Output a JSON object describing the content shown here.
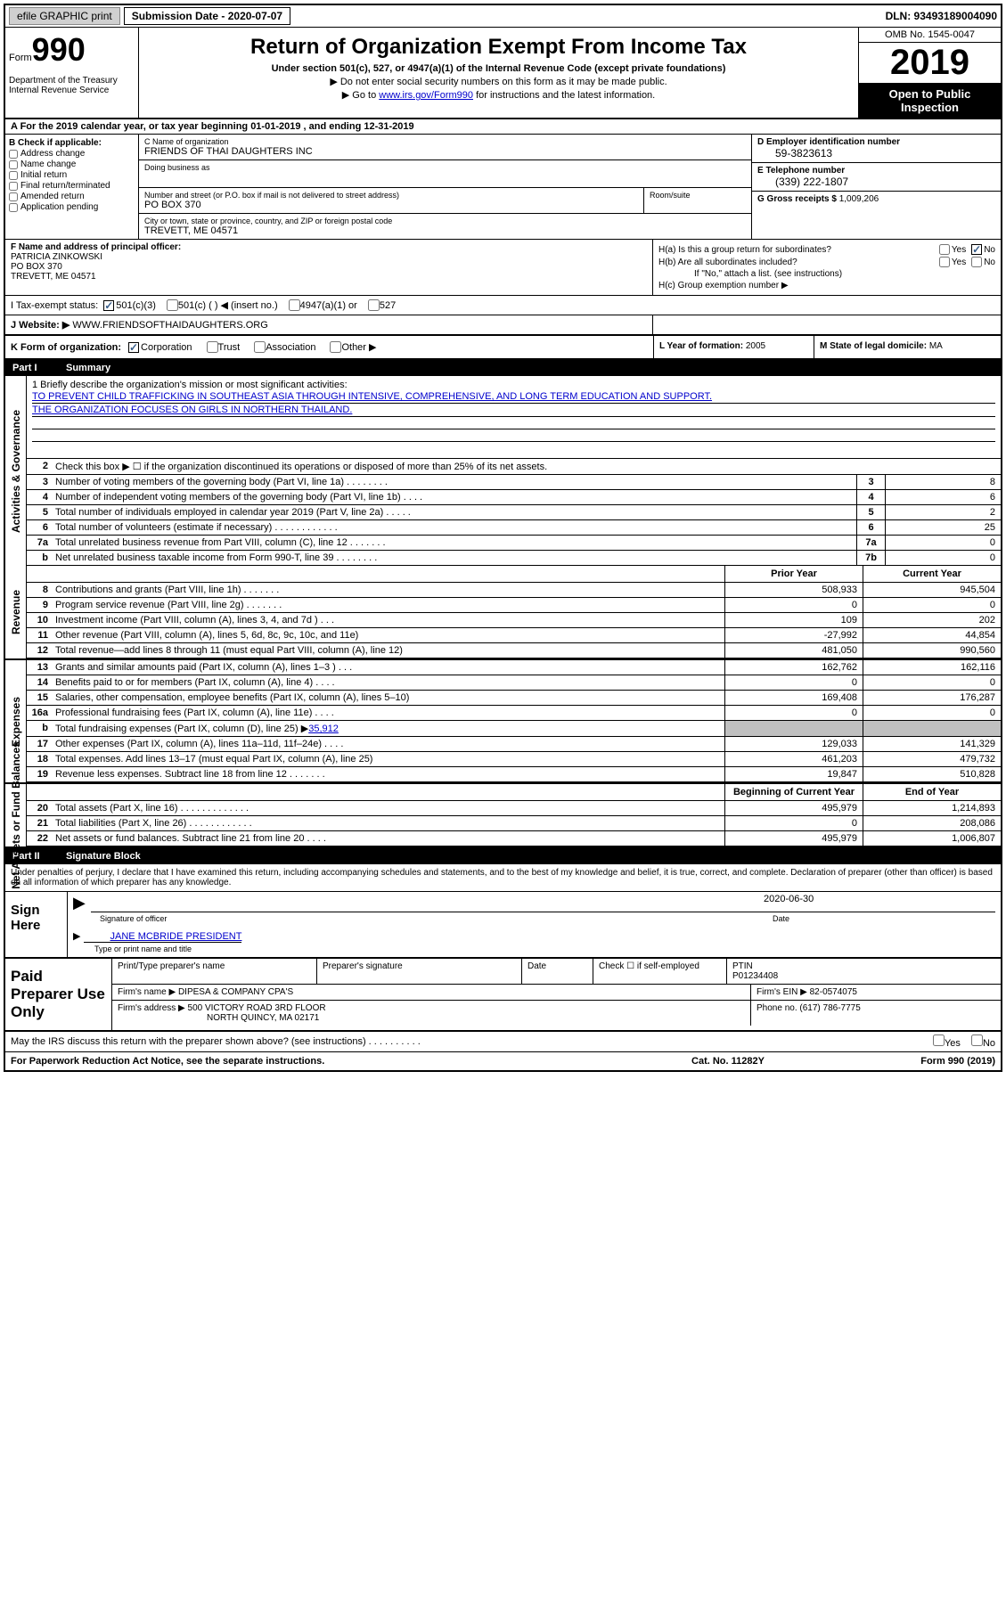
{
  "topbar": {
    "efile": "efile GRAPHIC print",
    "sub_label": "Submission Date - 2020-07-07",
    "dln": "DLN: 93493189004090"
  },
  "header": {
    "form_label": "Form",
    "form_num": "990",
    "dept": "Department of the Treasury\nInternal Revenue Service",
    "title": "Return of Organization Exempt From Income Tax",
    "subtitle": "Under section 501(c), 527, or 4947(a)(1) of the Internal Revenue Code (except private foundations)",
    "line1": "▶ Do not enter social security numbers on this form as it may be made public.",
    "line2_pre": "▶ Go to ",
    "line2_link": "www.irs.gov/Form990",
    "line2_post": " for instructions and the latest information.",
    "omb": "OMB No. 1545-0047",
    "year": "2019",
    "open": "Open to Public Inspection"
  },
  "row_a": "A For the 2019 calendar year, or tax year beginning 01-01-2019    , and ending 12-31-2019",
  "col_b": {
    "label": "B Check if applicable:",
    "items": [
      "Address change",
      "Name change",
      "Initial return",
      "Final return/terminated",
      "Amended return",
      "Application pending"
    ]
  },
  "col_c": {
    "name_label": "C Name of organization",
    "name": "FRIENDS OF THAI DAUGHTERS INC",
    "dba_label": "Doing business as",
    "dba": "",
    "addr_label": "Number and street (or P.O. box if mail is not delivered to street address)",
    "addr": "PO BOX 370",
    "room_label": "Room/suite",
    "city_label": "City or town, state or province, country, and ZIP or foreign postal code",
    "city": "TREVETT, ME  04571"
  },
  "col_d": {
    "ein_label": "D Employer identification number",
    "ein": "59-3823613",
    "tel_label": "E Telephone number",
    "tel": "(339) 222-1807",
    "gross_label": "G Gross receipts $",
    "gross": "1,009,206"
  },
  "col_f": {
    "label": "F  Name and address of principal officer:",
    "name": "PATRICIA ZINKOWSKI",
    "addr1": "PO BOX 370",
    "addr2": "TREVETT, ME  04571"
  },
  "col_h": {
    "ha_label": "H(a)  Is this a group return for subordinates?",
    "hb_label": "H(b)  Are all subordinates included?",
    "hb_note": "If \"No,\" attach a list. (see instructions)",
    "hc_label": "H(c)  Group exemption number ▶"
  },
  "row_i": {
    "label": "I    Tax-exempt status:",
    "opt1": "501(c)(3)",
    "opt2": "501(c) (  ) ◀ (insert no.)",
    "opt3": "4947(a)(1) or",
    "opt4": "527"
  },
  "row_j": {
    "label": "J   Website: ▶",
    "val": "WWW.FRIENDSOFTHAIDAUGHTERS.ORG"
  },
  "row_k": {
    "label": "K Form of organization:",
    "opts": [
      "Corporation",
      "Trust",
      "Association",
      "Other ▶"
    ],
    "l_label": "L Year of formation:",
    "l_val": "2005",
    "m_label": "M State of legal domicile:",
    "m_val": "MA"
  },
  "part1": {
    "label": "Part I",
    "title": "Summary"
  },
  "mission": {
    "label": "1  Briefly describe the organization's mission or most significant activities:",
    "line1": "TO PREVENT CHILD TRAFFICKING IN SOUTHEAST ASIA THROUGH INTENSIVE, COMPREHENSIVE, AND LONG TERM EDUCATION AND SUPPORT.",
    "line2": "THE ORGANIZATION FOCUSES ON GIRLS IN NORTHERN THAILAND."
  },
  "gov_rows": [
    {
      "n": "2",
      "desc": "Check this box ▶ ☐  if the organization discontinued its operations or disposed of more than 25% of its net assets."
    },
    {
      "n": "3",
      "desc": "Number of voting members of the governing body (Part VI, line 1a)  .   .   .   .   .   .   .   .",
      "box": "3",
      "val": "8"
    },
    {
      "n": "4",
      "desc": "Number of independent voting members of the governing body (Part VI, line 1b)  .   .   .   .",
      "box": "4",
      "val": "6"
    },
    {
      "n": "5",
      "desc": "Total number of individuals employed in calendar year 2019 (Part V, line 2a)  .   .   .   .   .",
      "box": "5",
      "val": "2"
    },
    {
      "n": "6",
      "desc": "Total number of volunteers (estimate if necessary)   .   .   .   .   .   .   .   .   .   .   .   .",
      "box": "6",
      "val": "25"
    },
    {
      "n": "7a",
      "desc": "Total unrelated business revenue from Part VIII, column (C), line 12  .   .   .   .   .   .   .",
      "box": "7a",
      "val": "0"
    },
    {
      "n": "b",
      "desc": "Net unrelated business taxable income from Form 990-T, line 39   .   .   .   .   .   .   .   .",
      "box": "7b",
      "val": "0"
    }
  ],
  "fin_hdr": {
    "py": "Prior Year",
    "cy": "Current Year"
  },
  "rev_rows": [
    {
      "n": "8",
      "desc": "Contributions and grants (Part VIII, line 1h)   .   .   .   .   .   .   .",
      "py": "508,933",
      "cy": "945,504"
    },
    {
      "n": "9",
      "desc": "Program service revenue (Part VIII, line 2g)   .   .   .   .   .   .   .",
      "py": "0",
      "cy": "0"
    },
    {
      "n": "10",
      "desc": "Investment income (Part VIII, column (A), lines 3, 4, and 7d )   .   .   .",
      "py": "109",
      "cy": "202"
    },
    {
      "n": "11",
      "desc": "Other revenue (Part VIII, column (A), lines 5, 6d, 8c, 9c, 10c, and 11e)",
      "py": "-27,992",
      "cy": "44,854"
    },
    {
      "n": "12",
      "desc": "Total revenue—add lines 8 through 11 (must equal Part VIII, column (A), line 12)",
      "py": "481,050",
      "cy": "990,560"
    }
  ],
  "exp_rows": [
    {
      "n": "13",
      "desc": "Grants and similar amounts paid (Part IX, column (A), lines 1–3 )  .   .   .",
      "py": "162,762",
      "cy": "162,116"
    },
    {
      "n": "14",
      "desc": "Benefits paid to or for members (Part IX, column (A), line 4)  .   .   .   .",
      "py": "0",
      "cy": "0"
    },
    {
      "n": "15",
      "desc": "Salaries, other compensation, employee benefits (Part IX, column (A), lines 5–10)",
      "py": "169,408",
      "cy": "176,287"
    },
    {
      "n": "16a",
      "desc": "Professional fundraising fees (Part IX, column (A), line 11e)  .   .   .   .",
      "py": "0",
      "cy": "0"
    },
    {
      "n": "b",
      "desc": "Total fundraising expenses (Part IX, column (D), line 25) ▶35,912",
      "py": "",
      "cy": "",
      "shaded": true
    },
    {
      "n": "17",
      "desc": "Other expenses (Part IX, column (A), lines 11a–11d, 11f–24e)  .   .   .   .",
      "py": "129,033",
      "cy": "141,329"
    },
    {
      "n": "18",
      "desc": "Total expenses. Add lines 13–17 (must equal Part IX, column (A), line 25)",
      "py": "461,203",
      "cy": "479,732"
    },
    {
      "n": "19",
      "desc": "Revenue less expenses. Subtract line 18 from line 12 .   .   .   .   .   .   .",
      "py": "19,847",
      "cy": "510,828"
    }
  ],
  "na_hdr": {
    "py": "Beginning of Current Year",
    "cy": "End of Year"
  },
  "na_rows": [
    {
      "n": "20",
      "desc": "Total assets (Part X, line 16)  .   .   .   .   .   .   .   .   .   .   .   .   .",
      "py": "495,979",
      "cy": "1,214,893"
    },
    {
      "n": "21",
      "desc": "Total liabilities (Part X, line 26)  .   .   .   .   .   .   .   .   .   .   .   .",
      "py": "0",
      "cy": "208,086"
    },
    {
      "n": "22",
      "desc": "Net assets or fund balances. Subtract line 21 from line 20  .   .   .   .",
      "py": "495,979",
      "cy": "1,006,807"
    }
  ],
  "part2": {
    "label": "Part II",
    "title": "Signature Block"
  },
  "sig_intro": "Under penalties of perjury, I declare that I have examined this return, including accompanying schedules and statements, and to the best of my knowledge and belief, it is true, correct, and complete. Declaration of preparer (other than officer) is based on all information of which preparer has any knowledge.",
  "sign": {
    "left": "Sign Here",
    "sig_label": "Signature of officer",
    "date_val": "2020-06-30",
    "date_label": "Date",
    "name": "JANE MCBRIDE  PRESIDENT",
    "name_label": "Type or print name and title"
  },
  "prep": {
    "left": "Paid Preparer Use Only",
    "r1_c1": "Print/Type preparer's name",
    "r1_c2": "Preparer's signature",
    "r1_c3": "Date",
    "r1_c4_label": "Check ☐ if self-employed",
    "r1_c5_label": "PTIN",
    "r1_c5_val": "P01234408",
    "r2_label": "Firm's name    ▶",
    "r2_val": "DIPESA & COMPANY CPA'S",
    "r2_ein_label": "Firm's EIN ▶",
    "r2_ein_val": "82-0574075",
    "r3_label": "Firm's address ▶",
    "r3_val1": "500 VICTORY ROAD 3RD FLOOR",
    "r3_val2": "NORTH QUINCY, MA  02171",
    "r3_tel_label": "Phone no.",
    "r3_tel_val": "(617) 786-7775"
  },
  "bottom": "May the IRS discuss this return with the preparer shown above? (see instructions)   .   .   .   .   .   .   .   .   .   .",
  "footer": {
    "l": "For Paperwork Reduction Act Notice, see the separate instructions.",
    "m": "Cat. No. 11282Y",
    "r": "Form 990 (2019)"
  },
  "side_labels": {
    "gov": "Activities & Governance",
    "rev": "Revenue",
    "exp": "Expenses",
    "na": "Net Assets or Fund Balances"
  }
}
